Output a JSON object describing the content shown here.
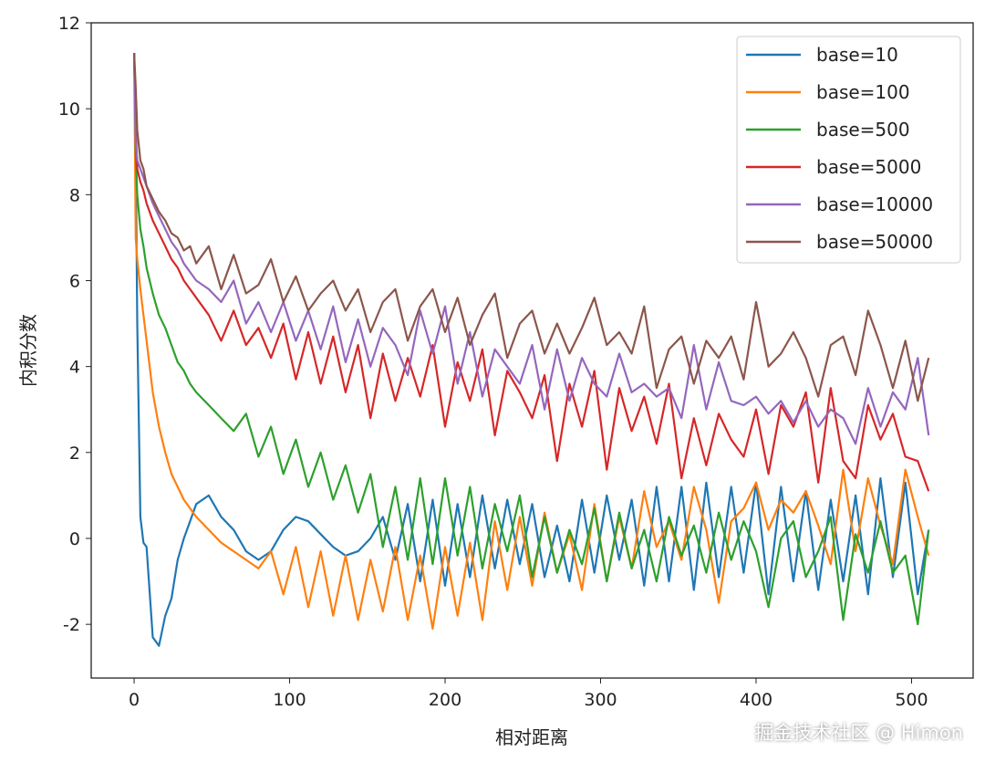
{
  "chart_data": {
    "type": "line",
    "title": "",
    "xlabel": "相对距离",
    "ylabel": "内积分数",
    "xlim": [
      -27.6,
      539.6
    ],
    "ylim": [
      -3.25,
      12
    ],
    "xticks": [
      0,
      100,
      200,
      300,
      400,
      500
    ],
    "xtick_labels": [
      "0",
      "100",
      "200",
      "300",
      "400",
      "500"
    ],
    "yticks": [
      -2,
      0,
      2,
      4,
      6,
      8,
      10,
      12
    ],
    "ytick_labels": [
      "-2",
      "0",
      "2",
      "4",
      "6",
      "8",
      "10",
      "12"
    ],
    "grid": false,
    "legend_position": "top-right",
    "x": [
      0,
      1,
      2,
      4,
      6,
      8,
      12,
      16,
      20,
      24,
      28,
      32,
      36,
      40,
      48,
      56,
      64,
      72,
      80,
      88,
      96,
      104,
      112,
      120,
      128,
      136,
      144,
      152,
      160,
      168,
      176,
      184,
      192,
      200,
      208,
      216,
      224,
      232,
      240,
      248,
      256,
      264,
      272,
      280,
      288,
      296,
      304,
      312,
      320,
      328,
      336,
      344,
      352,
      360,
      368,
      376,
      384,
      392,
      400,
      408,
      416,
      424,
      432,
      440,
      448,
      456,
      464,
      472,
      480,
      488,
      496,
      504,
      511
    ],
    "series": [
      {
        "name": "base=10",
        "color": "#1f77b4",
        "values": [
          11.3,
          9,
          5,
          0.5,
          -0.1,
          -0.2,
          -2.3,
          -2.5,
          -1.8,
          -1.4,
          -0.5,
          0,
          0.4,
          0.8,
          1.0,
          0.5,
          0.2,
          -0.3,
          -0.5,
          -0.3,
          0.2,
          0.5,
          0.4,
          0.1,
          -0.2,
          -0.4,
          -0.3,
          0,
          0.5,
          -0.5,
          0.8,
          -1.0,
          0.9,
          -1.1,
          0.8,
          -0.9,
          1.0,
          -0.7,
          0.9,
          -0.6,
          0.8,
          -0.9,
          0.3,
          -1.0,
          0.9,
          -0.8,
          1.0,
          -0.5,
          0.9,
          -1.1,
          1.2,
          -1.0,
          1.2,
          -1.2,
          1.3,
          -0.9,
          1.2,
          -0.8,
          1.3,
          -1.3,
          1.2,
          -1.0,
          1.1,
          -1.2,
          0.9,
          -1.0,
          1.0,
          -1.3,
          1.4,
          -0.9,
          1.3,
          -1.3,
          0.2
        ]
      },
      {
        "name": "base=100",
        "color": "#ff7f0e",
        "values": [
          11.3,
          7,
          6.5,
          5.8,
          5.2,
          4.6,
          3.4,
          2.6,
          2.0,
          1.5,
          1.2,
          0.9,
          0.7,
          0.5,
          0.2,
          -0.1,
          -0.3,
          -0.5,
          -0.7,
          -0.3,
          -1.3,
          -0.2,
          -1.6,
          -0.3,
          -1.8,
          -0.4,
          -1.9,
          -0.5,
          -1.7,
          -0.2,
          -1.9,
          -0.4,
          -2.1,
          -0.2,
          -1.8,
          -0.1,
          -1.9,
          0.4,
          -1.2,
          0.5,
          -1.1,
          0.6,
          -0.8,
          0.1,
          -1.2,
          0.8,
          -1.0,
          0.5,
          -0.7,
          1.1,
          -0.2,
          0.4,
          -0.5,
          1.2,
          0.2,
          -1.5,
          0.4,
          0.7,
          1.3,
          0.2,
          0.9,
          0.6,
          1.1,
          0.3,
          -0.6,
          1.6,
          -0.3,
          1.4,
          0.3,
          -0.6,
          1.6,
          0.5,
          -0.4
        ]
      },
      {
        "name": "base=500",
        "color": "#2ca02c",
        "values": [
          11.3,
          9,
          8,
          7.2,
          6.8,
          6.3,
          5.7,
          5.2,
          4.9,
          4.5,
          4.1,
          3.9,
          3.6,
          3.4,
          3.1,
          2.8,
          2.5,
          2.9,
          1.9,
          2.6,
          1.5,
          2.3,
          1.2,
          2.0,
          0.9,
          1.7,
          0.6,
          1.5,
          -0.2,
          1.2,
          -0.5,
          1.4,
          -0.6,
          1.4,
          -0.4,
          1.2,
          -0.7,
          0.8,
          -0.3,
          1.0,
          -0.9,
          0.5,
          -0.8,
          0.2,
          -0.6,
          0.7,
          -1.0,
          0.6,
          -0.7,
          0.2,
          -1.0,
          0.5,
          -0.4,
          0.3,
          -0.8,
          0.6,
          -0.5,
          0.4,
          -0.3,
          -1.6,
          0.0,
          0.4,
          -0.9,
          -0.3,
          0.5,
          -1.9,
          0.1,
          -0.8,
          0.4,
          -0.8,
          -0.4,
          -2.0,
          0.2
        ]
      },
      {
        "name": "base=5000",
        "color": "#d62728",
        "values": [
          11.3,
          9.5,
          8.6,
          8.3,
          8.1,
          7.8,
          7.4,
          7.1,
          6.8,
          6.5,
          6.3,
          6.0,
          5.8,
          5.6,
          5.2,
          4.6,
          5.3,
          4.5,
          4.9,
          4.2,
          5.0,
          3.7,
          4.8,
          3.6,
          4.7,
          3.4,
          4.5,
          2.8,
          4.3,
          3.2,
          4.2,
          3.3,
          4.5,
          2.6,
          4.1,
          3.2,
          4.4,
          2.4,
          3.9,
          3.4,
          2.8,
          3.8,
          1.8,
          3.6,
          2.6,
          3.9,
          1.6,
          3.5,
          2.5,
          3.3,
          2.2,
          3.6,
          1.4,
          2.8,
          1.7,
          2.9,
          2.3,
          1.9,
          3.0,
          1.5,
          3.1,
          2.6,
          3.4,
          1.3,
          3.5,
          1.8,
          1.4,
          3.1,
          2.3,
          2.9,
          1.9,
          1.8,
          1.1
        ]
      },
      {
        "name": "base=10000",
        "color": "#9467bd",
        "values": [
          11.3,
          9.2,
          8.8,
          8.6,
          8.4,
          8.2,
          7.8,
          7.5,
          7.2,
          6.9,
          6.7,
          6.4,
          6.2,
          6.0,
          5.8,
          5.5,
          6.0,
          5.0,
          5.5,
          4.8,
          5.5,
          4.6,
          5.3,
          4.4,
          5.4,
          4.1,
          5.1,
          4.0,
          4.9,
          4.5,
          3.8,
          5.3,
          4.3,
          5.4,
          3.6,
          4.8,
          3.3,
          4.4,
          4.0,
          3.6,
          4.5,
          3.0,
          4.4,
          3.2,
          4.2,
          3.6,
          3.3,
          4.3,
          3.4,
          3.6,
          3.3,
          3.5,
          2.8,
          4.5,
          3.0,
          4.1,
          3.2,
          3.1,
          3.3,
          2.9,
          3.2,
          2.7,
          3.2,
          2.6,
          3.0,
          2.8,
          2.2,
          3.5,
          2.6,
          3.4,
          3.0,
          4.2,
          2.4
        ]
      },
      {
        "name": "base=50000",
        "color": "#8c564b",
        "values": [
          11.3,
          10.5,
          9.5,
          8.8,
          8.6,
          8.2,
          7.9,
          7.6,
          7.4,
          7.1,
          7.0,
          6.7,
          6.8,
          6.4,
          6.8,
          5.8,
          6.6,
          5.7,
          5.9,
          6.5,
          5.5,
          6.1,
          5.3,
          5.7,
          6.0,
          5.3,
          5.8,
          4.8,
          5.5,
          5.8,
          4.6,
          5.4,
          5.8,
          4.8,
          5.6,
          4.5,
          5.2,
          5.7,
          4.2,
          5.0,
          5.3,
          4.3,
          5.0,
          4.3,
          4.9,
          5.6,
          4.5,
          4.8,
          4.3,
          5.4,
          3.5,
          4.4,
          4.7,
          3.6,
          4.6,
          4.2,
          4.7,
          3.7,
          5.5,
          4.0,
          4.3,
          4.8,
          4.2,
          3.3,
          4.5,
          4.7,
          3.8,
          5.3,
          4.5,
          3.5,
          4.6,
          3.2,
          4.2
        ]
      }
    ]
  },
  "watermark": "掘金技术社区 @ Himon"
}
